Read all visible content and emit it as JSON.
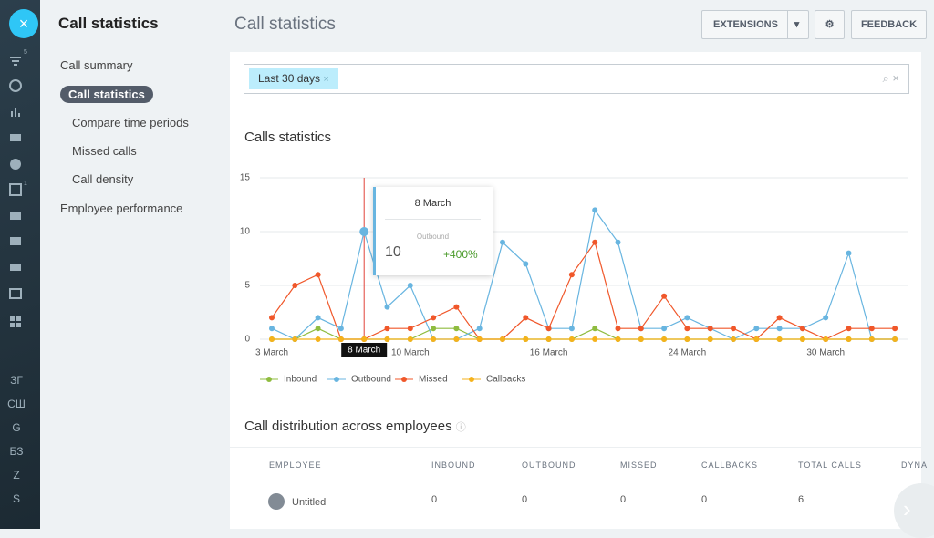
{
  "sidebar": {
    "badges": [
      "5",
      "1"
    ],
    "labels": [
      "ЗГ",
      "СШ",
      "G",
      "БЗ",
      "Z",
      "S"
    ]
  },
  "nav": {
    "title": "Call statistics",
    "items": [
      "Call summary",
      "Call statistics",
      "Compare time periods",
      "Missed calls",
      "Call density",
      "Employee performance"
    ],
    "active": 1
  },
  "header": {
    "title": "Call statistics",
    "buttons": [
      "EXTENSIONS",
      "FEEDBACK"
    ]
  },
  "filter": {
    "chip": "Last 30 days"
  },
  "chart_data": {
    "type": "line",
    "title": "Calls statistics",
    "categories": [
      "3 March",
      null,
      null,
      null,
      "8 March",
      null,
      "10 March",
      null,
      null,
      null,
      null,
      null,
      "16 March",
      null,
      null,
      null,
      null,
      null,
      "24 March",
      null,
      null,
      null,
      null,
      null,
      "30 March",
      null,
      null,
      null
    ],
    "series": [
      {
        "name": "Inbound",
        "color": "#8fbc3f",
        "values": [
          0,
          0,
          1,
          0,
          0,
          0,
          0,
          1,
          1,
          0,
          0,
          0,
          0,
          0,
          1,
          0,
          0,
          0,
          0,
          0,
          0,
          0,
          0,
          0,
          0,
          0,
          0,
          0
        ]
      },
      {
        "name": "Outbound",
        "color": "#68b5e0",
        "values": [
          1,
          0,
          2,
          1,
          10,
          3,
          5,
          0,
          0,
          1,
          9,
          7,
          1,
          1,
          12,
          9,
          1,
          1,
          2,
          1,
          0,
          1,
          1,
          1,
          2,
          8,
          0,
          0
        ]
      },
      {
        "name": "Missed",
        "color": "#f0572a",
        "values": [
          2,
          5,
          6,
          0,
          0,
          1,
          1,
          2,
          3,
          0,
          0,
          2,
          1,
          6,
          9,
          1,
          1,
          4,
          1,
          1,
          1,
          0,
          2,
          1,
          0,
          1,
          1,
          1
        ]
      },
      {
        "name": "Callbacks",
        "color": "#f5b21b",
        "values": [
          0,
          0,
          0,
          0,
          0,
          0,
          0,
          0,
          0,
          0,
          0,
          0,
          0,
          0,
          0,
          0,
          0,
          0,
          0,
          0,
          0,
          0,
          0,
          0,
          0,
          0,
          0,
          0
        ]
      }
    ],
    "ylim": [
      0,
      15
    ],
    "yticks": [
      0,
      5,
      10,
      15
    ],
    "grid": true,
    "tooltip": {
      "title": "8 March",
      "series": "Outbound",
      "value": 10,
      "change": "+400%"
    }
  },
  "table": {
    "title": "Call distribution across employees",
    "headers": [
      "EMPLOYEE",
      "INBOUND",
      "OUTBOUND",
      "MISSED",
      "CALLBACKS",
      "TOTAL CALLS",
      "DYNA"
    ],
    "rows": [
      [
        "Untitled",
        0,
        0,
        0,
        0,
        6
      ]
    ]
  }
}
